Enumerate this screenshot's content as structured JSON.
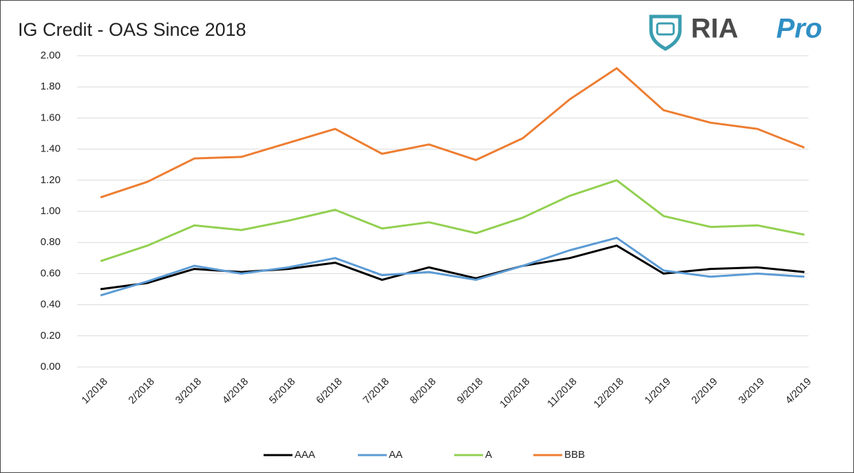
{
  "logo": {
    "text": "RIA",
    "accent": "Pro"
  },
  "chart_data": {
    "type": "line",
    "title": "IG Credit - OAS Since 2018",
    "categories": [
      "1/2018",
      "2/2018",
      "3/2018",
      "4/2018",
      "5/2018",
      "6/2018",
      "7/2018",
      "8/2018",
      "9/2018",
      "10/2018",
      "11/2018",
      "12/2018",
      "1/2019",
      "2/2019",
      "3/2019",
      "4/2019"
    ],
    "series": [
      {
        "name": "AAA",
        "color": "#000000",
        "values": [
          0.5,
          0.54,
          0.63,
          0.61,
          0.63,
          0.67,
          0.56,
          0.64,
          0.57,
          0.65,
          0.7,
          0.78,
          0.6,
          0.63,
          0.64,
          0.61
        ]
      },
      {
        "name": "AA",
        "color": "#5b9bd5",
        "values": [
          0.46,
          0.55,
          0.65,
          0.6,
          0.64,
          0.7,
          0.59,
          0.61,
          0.56,
          0.65,
          0.75,
          0.83,
          0.62,
          0.58,
          0.6,
          0.58
        ]
      },
      {
        "name": "A",
        "color": "#92d050",
        "values": [
          0.68,
          0.78,
          0.91,
          0.88,
          0.94,
          1.01,
          0.89,
          0.93,
          0.86,
          0.96,
          1.1,
          1.2,
          0.97,
          0.9,
          0.91,
          0.85
        ]
      },
      {
        "name": "BBB",
        "color": "#ed7d31",
        "values": [
          1.09,
          1.19,
          1.34,
          1.35,
          1.44,
          1.53,
          1.37,
          1.43,
          1.33,
          1.47,
          1.72,
          1.92,
          1.65,
          1.57,
          1.53,
          1.41
        ]
      }
    ],
    "ylim": [
      0,
      2
    ],
    "yticks": [
      {
        "value": 0,
        "label": "0.00"
      },
      {
        "value": 0.2,
        "label": "0.20"
      },
      {
        "value": 0.4,
        "label": "0.40"
      },
      {
        "value": 0.6,
        "label": "0.60"
      },
      {
        "value": 0.8,
        "label": "0.80"
      },
      {
        "value": 1,
        "label": "1.00"
      },
      {
        "value": 1.2,
        "label": "1.20"
      },
      {
        "value": 1.4,
        "label": "1.40"
      },
      {
        "value": 1.6,
        "label": "1.60"
      },
      {
        "value": 1.8,
        "label": "1.80"
      },
      {
        "value": 2,
        "label": "2.00"
      }
    ],
    "grid": true,
    "legend": "bottom"
  }
}
